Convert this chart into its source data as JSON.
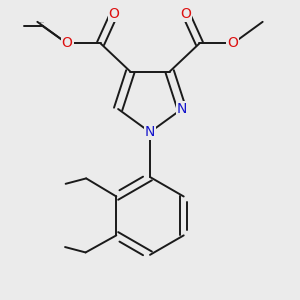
{
  "background_color": "#ebebeb",
  "bond_color": "#1a1a1a",
  "bond_width": 1.4,
  "atom_colors": {
    "C": "#1a1a1a",
    "N": "#1515cc",
    "O": "#dd1111"
  },
  "font_size": 9.5,
  "figsize": [
    3.0,
    3.0
  ],
  "dpi": 100
}
